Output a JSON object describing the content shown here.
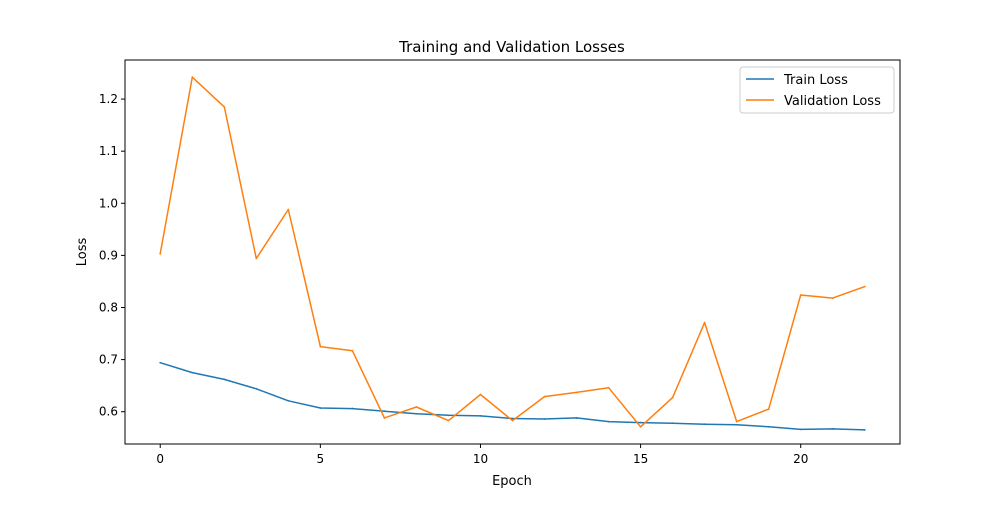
{
  "chart_data": {
    "type": "line",
    "title": "Training and Validation Losses",
    "xlabel": "Epoch",
    "ylabel": "Loss",
    "xlim": [
      -1.1,
      23.1
    ],
    "ylim": [
      0.538,
      1.275
    ],
    "xticks": [
      0,
      5,
      10,
      15,
      20
    ],
    "xtick_labels": [
      "0",
      "5",
      "10",
      "15",
      "20"
    ],
    "yticks": [
      0.6,
      0.7,
      0.8,
      0.9,
      1.0,
      1.1,
      1.2
    ],
    "ytick_labels": [
      "0.6",
      "0.7",
      "0.8",
      "0.9",
      "1.0",
      "1.1",
      "1.2"
    ],
    "grid": false,
    "legend_position": "top-right",
    "x": [
      0,
      1,
      2,
      3,
      4,
      5,
      6,
      7,
      8,
      9,
      10,
      11,
      12,
      13,
      14,
      15,
      16,
      17,
      18,
      19,
      20,
      21,
      22
    ],
    "series": [
      {
        "name": "Train Loss",
        "color": "#1f77b4",
        "values": [
          0.694,
          0.675,
          0.662,
          0.644,
          0.621,
          0.607,
          0.606,
          0.601,
          0.596,
          0.593,
          0.592,
          0.587,
          0.586,
          0.588,
          0.581,
          0.579,
          0.578,
          0.576,
          0.575,
          0.571,
          0.566,
          0.567,
          0.565
        ]
      },
      {
        "name": "Validation Loss",
        "color": "#ff7f0e",
        "values": [
          0.903,
          1.242,
          1.185,
          0.894,
          0.988,
          0.725,
          0.717,
          0.588,
          0.609,
          0.583,
          0.633,
          0.583,
          0.629,
          0.637,
          0.646,
          0.571,
          0.627,
          0.771,
          0.581,
          0.605,
          0.824,
          0.818,
          0.84
        ]
      }
    ]
  }
}
